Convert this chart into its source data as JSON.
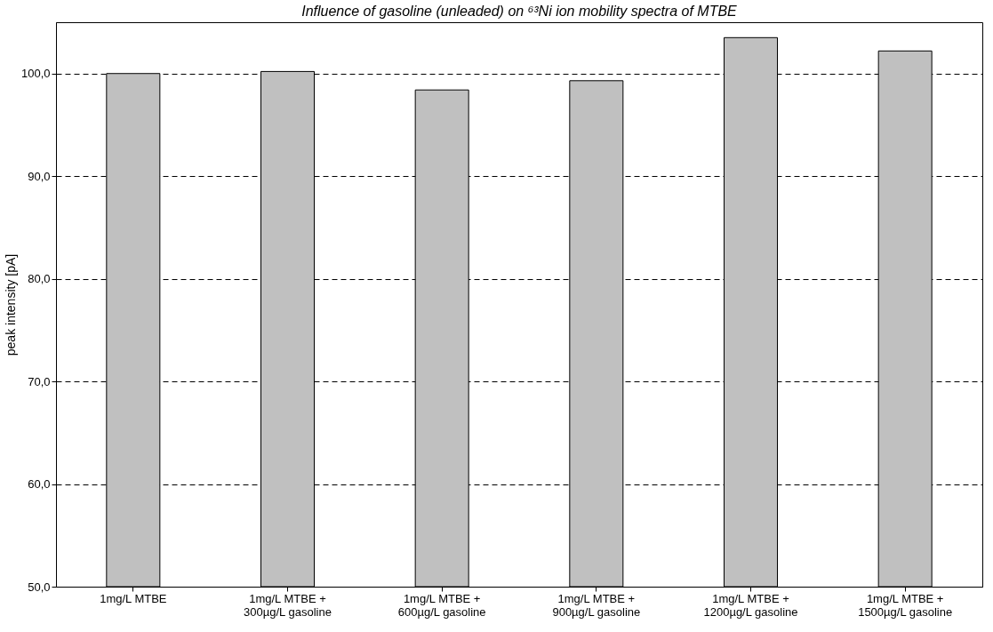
{
  "chart_data": {
    "type": "bar",
    "title": "Influence of gasoline (unleaded) on ⁶³Ni ion mobility spectra of MTBE",
    "ylabel": "peak intensity [pA]",
    "categories": [
      "1mg/L MTBE",
      "1mg/L MTBE + 300µg/L gasoline",
      "1mg/L MTBE + 600µg/L gasoline",
      "1mg/L MTBE + 900µg/L gasoline",
      "1mg/L MTBE + 1200µg/L gasoline",
      "1mg/L MTBE + 1500µg/L gasoline"
    ],
    "values": [
      100.0,
      100.2,
      98.4,
      99.3,
      103.5,
      102.2
    ],
    "color": "#c0c0c0",
    "ylim": [
      50,
      105
    ],
    "yticks": [
      {
        "value": 50,
        "label": "50,0"
      },
      {
        "value": 60,
        "label": "60,0"
      },
      {
        "value": 70,
        "label": "70,0"
      },
      {
        "value": 80,
        "label": "80,0"
      },
      {
        "value": 90,
        "label": "90,0"
      },
      {
        "value": 100,
        "label": "100,0"
      }
    ],
    "grid": "y",
    "line_style": "dashed"
  }
}
